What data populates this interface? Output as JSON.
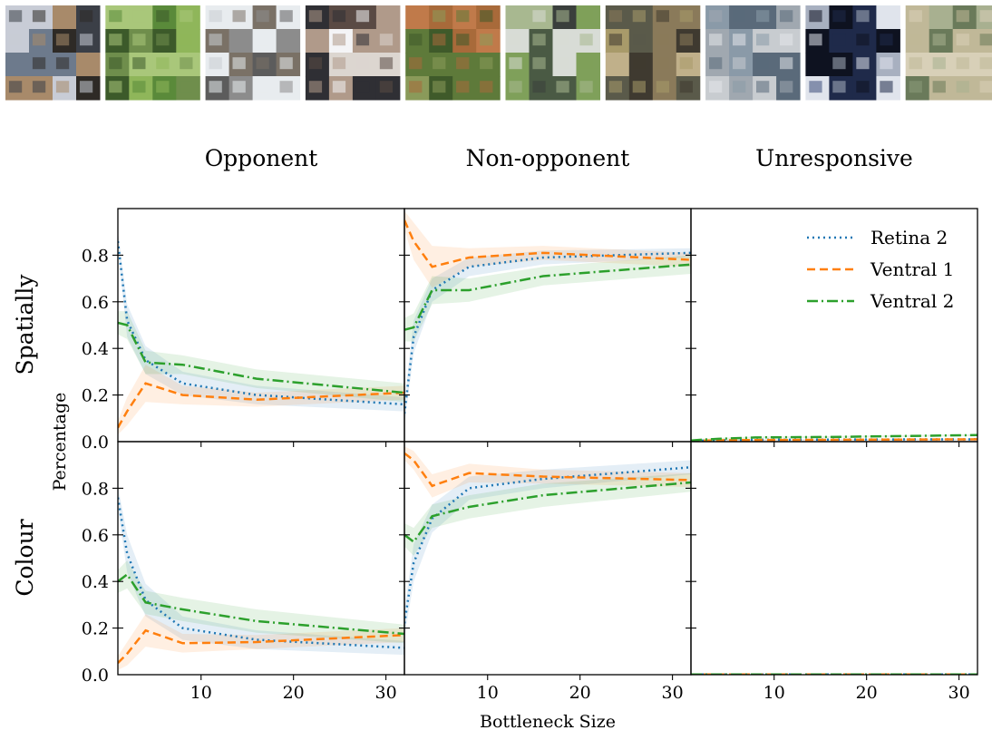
{
  "column_titles": [
    "Opponent",
    "Non-opponent",
    "Unresponsive"
  ],
  "row_labels": [
    "Spatially",
    "Colour"
  ],
  "xlabel": "Bottleneck Size",
  "ylabel": "Percentage",
  "colors": {
    "retina2": "#1f77b4",
    "ventral1": "#ff7f0e",
    "ventral2": "#2ca02c"
  },
  "patch_images": [
    {
      "index": 1,
      "palette": [
        "#6d7a8c",
        "#3b3f47",
        "#a88a6a",
        "#c8ccd6",
        "#2e2a26"
      ]
    },
    {
      "index": 2,
      "palette": [
        "#5a8a3a",
        "#8fb65a",
        "#3c5a2a",
        "#a9c77a",
        "#6f8e4c"
      ]
    },
    {
      "index": 3,
      "palette": [
        "#8c8c8c",
        "#c9cdd2",
        "#5c5c5c",
        "#e8ecef",
        "#7a7166"
      ]
    },
    {
      "index": 4,
      "palette": [
        "#f4f4f6",
        "#5a4a44",
        "#b09a8a",
        "#2f2f34",
        "#dcd6d0"
      ]
    },
    {
      "index": 5,
      "palette": [
        "#5e7a3a",
        "#a86a3a",
        "#8a9a5a",
        "#c07a4a",
        "#3f5a2a"
      ]
    },
    {
      "index": 6,
      "palette": [
        "#7fa05a",
        "#d8dcd6",
        "#4a5a44",
        "#a8b890",
        "#3a3f3c"
      ]
    },
    {
      "index": 7,
      "palette": [
        "#8a7a5a",
        "#5a5a4a",
        "#a89a6a",
        "#3f3a30",
        "#c0b08a"
      ]
    },
    {
      "index": 8,
      "palette": [
        "#c8ccd0",
        "#8a9aa8",
        "#e4e6ea",
        "#5a6a7a",
        "#a0a8b0"
      ]
    },
    {
      "index": 9,
      "palette": [
        "#1f2a4a",
        "#a8b0c0",
        "#3a4a7a",
        "#e0e4ec",
        "#0e1220"
      ]
    },
    {
      "index": 10,
      "palette": [
        "#8a9a7a",
        "#c0b898",
        "#6a7a5a",
        "#d8d0b8",
        "#a8b090"
      ]
    }
  ],
  "chart_data": [
    {
      "type": "line",
      "row": "Spatially",
      "column": "Opponent",
      "xlim": [
        1,
        32
      ],
      "ylim": [
        0,
        1.0
      ],
      "yticks": [
        0.0,
        0.2,
        0.4,
        0.6,
        0.8
      ],
      "xticks": [
        10,
        20,
        30
      ],
      "series": [
        {
          "name": "Retina 2",
          "x": [
            1,
            2,
            4,
            8,
            16,
            32
          ],
          "y": [
            0.86,
            0.52,
            0.35,
            0.25,
            0.2,
            0.16
          ],
          "band": [
            0.04,
            0.07,
            0.06,
            0.05,
            0.04,
            0.03
          ]
        },
        {
          "name": "Ventral 1",
          "x": [
            1,
            2,
            4,
            8,
            16,
            32
          ],
          "y": [
            0.06,
            0.13,
            0.25,
            0.2,
            0.18,
            0.21
          ],
          "band": [
            0.03,
            0.06,
            0.08,
            0.04,
            0.03,
            0.03
          ]
        },
        {
          "name": "Ventral 2",
          "x": [
            1,
            2,
            4,
            8,
            16,
            32
          ],
          "y": [
            0.51,
            0.5,
            0.34,
            0.33,
            0.27,
            0.21
          ],
          "band": [
            0.05,
            0.06,
            0.05,
            0.04,
            0.04,
            0.04
          ]
        }
      ]
    },
    {
      "type": "line",
      "row": "Spatially",
      "column": "Non-opponent",
      "xlim": [
        1,
        32
      ],
      "ylim": [
        0,
        1.0
      ],
      "xticks": [
        10,
        20,
        30
      ],
      "series": [
        {
          "name": "Retina 2",
          "x": [
            1,
            2,
            4,
            8,
            16,
            32
          ],
          "y": [
            0.12,
            0.45,
            0.65,
            0.75,
            0.79,
            0.81
          ],
          "band": [
            0.05,
            0.07,
            0.05,
            0.04,
            0.03,
            0.02
          ]
        },
        {
          "name": "Ventral 1",
          "x": [
            1,
            2,
            4,
            8,
            16,
            32
          ],
          "y": [
            0.95,
            0.86,
            0.75,
            0.79,
            0.81,
            0.78
          ],
          "band": [
            0.04,
            0.08,
            0.09,
            0.04,
            0.03,
            0.03
          ]
        },
        {
          "name": "Ventral 2",
          "x": [
            1,
            2,
            4,
            8,
            16,
            32
          ],
          "y": [
            0.48,
            0.49,
            0.65,
            0.65,
            0.71,
            0.76
          ],
          "band": [
            0.05,
            0.06,
            0.06,
            0.05,
            0.04,
            0.04
          ]
        }
      ]
    },
    {
      "type": "line",
      "row": "Spatially",
      "column": "Unresponsive",
      "xlim": [
        1,
        32
      ],
      "ylim": [
        0,
        1.0
      ],
      "xticks": [
        10,
        20,
        30
      ],
      "series": [
        {
          "name": "Retina 2",
          "x": [
            1,
            2,
            4,
            8,
            16,
            32
          ],
          "y": [
            0.003,
            0.004,
            0.006,
            0.008,
            0.009,
            0.01
          ],
          "band": [
            0.003,
            0.003,
            0.003,
            0.003,
            0.003,
            0.003
          ]
        },
        {
          "name": "Ventral 1",
          "x": [
            1,
            2,
            4,
            8,
            16,
            32
          ],
          "y": [
            0.003,
            0.004,
            0.006,
            0.007,
            0.008,
            0.01
          ],
          "band": [
            0.003,
            0.003,
            0.003,
            0.003,
            0.003,
            0.003
          ]
        },
        {
          "name": "Ventral 2",
          "x": [
            1,
            2,
            4,
            8,
            16,
            32
          ],
          "y": [
            0.005,
            0.008,
            0.012,
            0.018,
            0.02,
            0.028
          ],
          "band": [
            0.004,
            0.004,
            0.004,
            0.004,
            0.004,
            0.004
          ]
        }
      ]
    },
    {
      "type": "line",
      "row": "Colour",
      "column": "Opponent",
      "xlim": [
        1,
        32
      ],
      "ylim": [
        0,
        1.0
      ],
      "yticks": [
        0.0,
        0.2,
        0.4,
        0.6,
        0.8
      ],
      "xticks": [
        10,
        20,
        30
      ],
      "series": [
        {
          "name": "Retina 2",
          "x": [
            1,
            2,
            4,
            8,
            16,
            32
          ],
          "y": [
            0.76,
            0.52,
            0.32,
            0.2,
            0.15,
            0.115
          ],
          "band": [
            0.05,
            0.08,
            0.07,
            0.05,
            0.04,
            0.03
          ]
        },
        {
          "name": "Ventral 1",
          "x": [
            1,
            2,
            4,
            8,
            16,
            32
          ],
          "y": [
            0.05,
            0.09,
            0.19,
            0.135,
            0.14,
            0.17
          ],
          "band": [
            0.03,
            0.05,
            0.07,
            0.04,
            0.03,
            0.03
          ]
        },
        {
          "name": "Ventral 2",
          "x": [
            1,
            2,
            4,
            8,
            16,
            32
          ],
          "y": [
            0.4,
            0.43,
            0.31,
            0.28,
            0.23,
            0.175
          ],
          "band": [
            0.05,
            0.06,
            0.05,
            0.05,
            0.05,
            0.04
          ]
        }
      ]
    },
    {
      "type": "line",
      "row": "Colour",
      "column": "Non-opponent",
      "xlim": [
        1,
        32
      ],
      "ylim": [
        0,
        1.0
      ],
      "xticks": [
        10,
        20,
        30
      ],
      "series": [
        {
          "name": "Retina 2",
          "x": [
            1,
            2,
            4,
            8,
            16,
            32
          ],
          "y": [
            0.22,
            0.48,
            0.67,
            0.8,
            0.84,
            0.89
          ],
          "band": [
            0.06,
            0.08,
            0.06,
            0.05,
            0.04,
            0.03
          ]
        },
        {
          "name": "Ventral 1",
          "x": [
            1,
            2,
            4,
            8,
            16,
            32
          ],
          "y": [
            0.95,
            0.92,
            0.81,
            0.865,
            0.85,
            0.835
          ],
          "band": [
            0.03,
            0.04,
            0.05,
            0.04,
            0.03,
            0.03
          ]
        },
        {
          "name": "Ventral 2",
          "x": [
            1,
            2,
            4,
            8,
            16,
            32
          ],
          "y": [
            0.6,
            0.57,
            0.68,
            0.72,
            0.77,
            0.825
          ],
          "band": [
            0.05,
            0.06,
            0.05,
            0.05,
            0.05,
            0.04
          ]
        }
      ]
    },
    {
      "type": "line",
      "row": "Colour",
      "column": "Unresponsive",
      "xlim": [
        1,
        32
      ],
      "ylim": [
        0,
        1.0
      ],
      "xticks": [
        10,
        20,
        30
      ],
      "series": [
        {
          "name": "Retina 2",
          "x": [
            1,
            2,
            4,
            8,
            16,
            32
          ],
          "y": [
            0.001,
            0.001,
            0.001,
            0.001,
            0.001,
            0.001
          ],
          "band": [
            0.001,
            0.001,
            0.001,
            0.001,
            0.001,
            0.001
          ]
        },
        {
          "name": "Ventral 1",
          "x": [
            1,
            2,
            4,
            8,
            16,
            32
          ],
          "y": [
            0.001,
            0.001,
            0.001,
            0.001,
            0.001,
            0.001
          ],
          "band": [
            0.001,
            0.001,
            0.001,
            0.001,
            0.001,
            0.001
          ]
        },
        {
          "name": "Ventral 2",
          "x": [
            1,
            2,
            4,
            8,
            16,
            32
          ],
          "y": [
            0.001,
            0.001,
            0.001,
            0.001,
            0.001,
            0.001
          ],
          "band": [
            0.001,
            0.001,
            0.001,
            0.001,
            0.001,
            0.001
          ]
        }
      ]
    }
  ],
  "legend": {
    "placement": "top-right",
    "entries": [
      {
        "label": "Retina 2",
        "style": "dotted"
      },
      {
        "label": "Ventral 1",
        "style": "dashed"
      },
      {
        "label": "Ventral 2",
        "style": "dashdot"
      }
    ]
  }
}
